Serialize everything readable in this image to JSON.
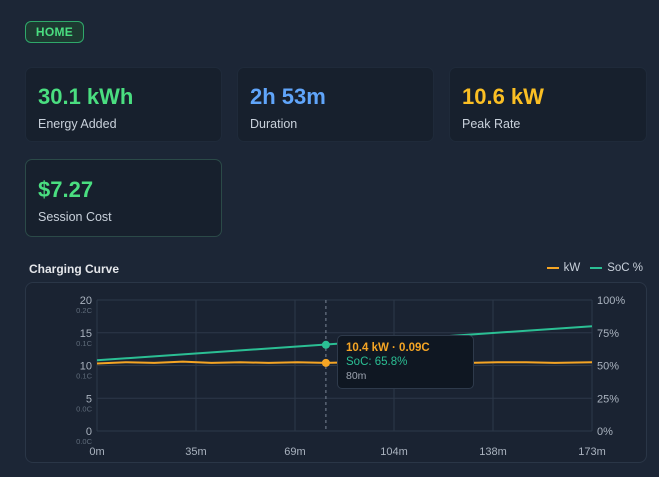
{
  "header": {
    "badge_label": "HOME"
  },
  "stats": [
    {
      "value": "30.1 kWh",
      "label": "Energy Added",
      "color": "#4ade80"
    },
    {
      "value": "2h 53m",
      "label": "Duration",
      "color": "#60a5fa"
    },
    {
      "value": "10.6 kW",
      "label": "Peak Rate",
      "color": "#fbbf24"
    },
    {
      "value": "$7.27",
      "label": "Session Cost",
      "color": "#4ade80"
    }
  ],
  "chart_panel": {
    "title": "Charging Curve",
    "legend": [
      {
        "label": "kW",
        "color": "#f5a524"
      },
      {
        "label": "SoC %",
        "color": "#2bbf94"
      }
    ],
    "tooltip": {
      "line1": "10.4 kW · 0.09C",
      "line2": "SoC: 65.8%",
      "line3": "80m"
    }
  },
  "chart_data": {
    "type": "line",
    "x_unit": "minutes",
    "x_ticks": [
      "0m",
      "35m",
      "69m",
      "104m",
      "138m",
      "173m"
    ],
    "x_range": [
      0,
      173
    ],
    "y_left_ticks": [
      "0",
      "5",
      "10",
      "15",
      "20"
    ],
    "y_left_sub_ticks": [
      "0.0C",
      "0.0C",
      "0.1C",
      "0.1C",
      "0.2C"
    ],
    "y_left_range": [
      0,
      20
    ],
    "y_right_ticks": [
      "0%",
      "25%",
      "50%",
      "75%",
      "100%"
    ],
    "y_right_range": [
      0,
      100
    ],
    "grid": true,
    "legend_position": "top-right",
    "series": [
      {
        "name": "kW",
        "axis": "left",
        "x": [
          0,
          10,
          20,
          30,
          40,
          50,
          60,
          70,
          80,
          90,
          100,
          110,
          120,
          130,
          140,
          150,
          160,
          173
        ],
        "values": [
          10.3,
          10.5,
          10.4,
          10.6,
          10.4,
          10.5,
          10.4,
          10.5,
          10.4,
          10.5,
          10.6,
          10.4,
          10.5,
          10.4,
          10.5,
          10.5,
          10.4,
          10.5
        ]
      },
      {
        "name": "SoC %",
        "axis": "right",
        "x": [
          0,
          173
        ],
        "values": [
          54,
          80
        ]
      }
    ],
    "cursor": {
      "x": 80,
      "kw": 10.4,
      "soc": 65.8
    }
  }
}
